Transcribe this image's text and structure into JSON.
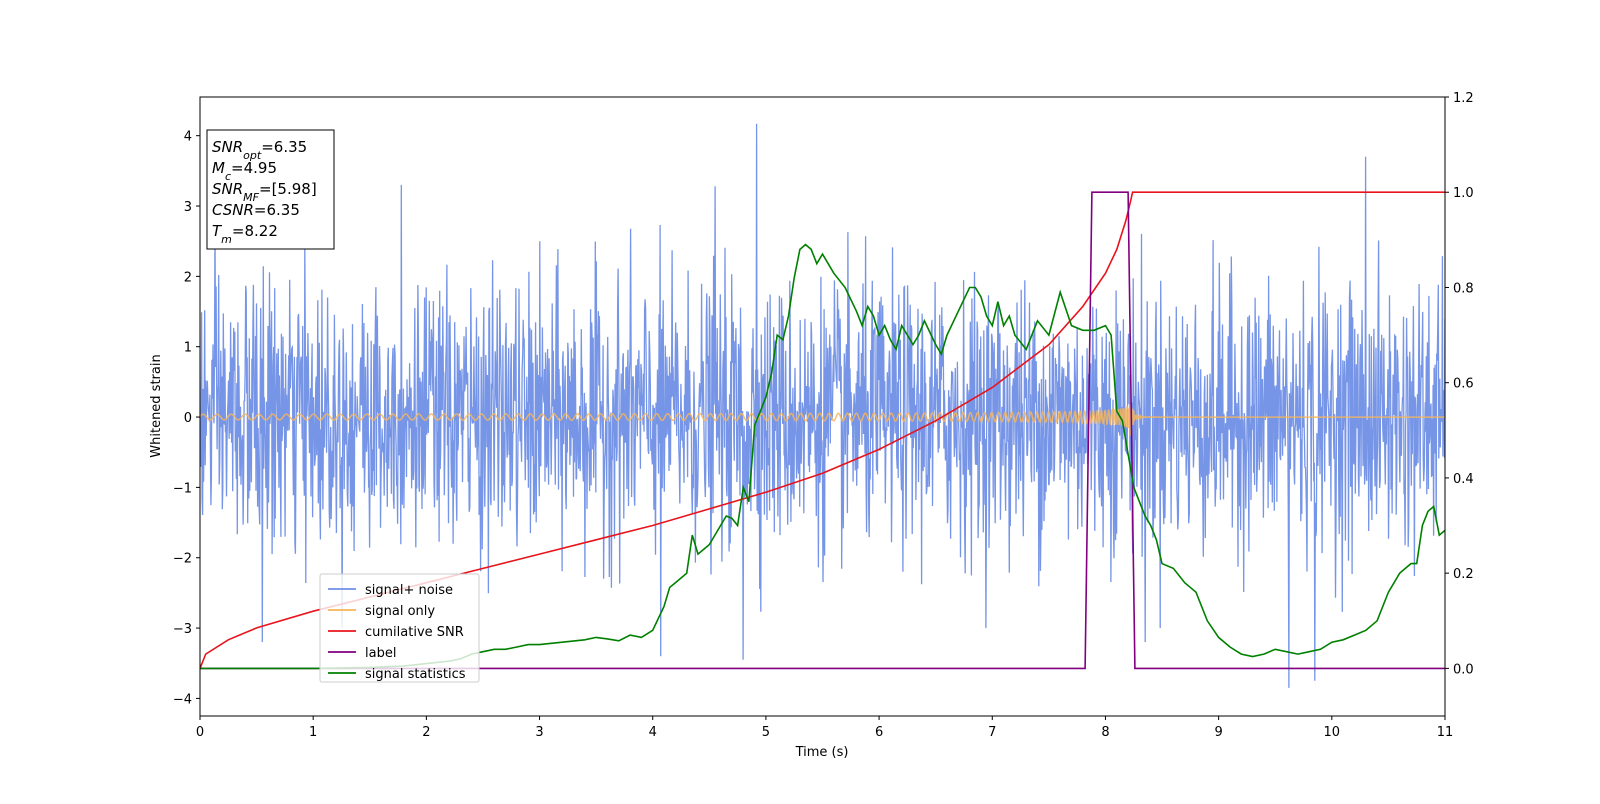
{
  "chart_data": {
    "type": "line",
    "xlabel": "Time (s)",
    "ylabel": "Whitened strain",
    "xlim": [
      0,
      11
    ],
    "ylim": [
      -4.25,
      4.55
    ],
    "y2lim": [
      -0.1,
      1.2
    ],
    "xticks": [
      "0",
      "1",
      "2",
      "3",
      "4",
      "5",
      "6",
      "7",
      "8",
      "9",
      "10",
      "11"
    ],
    "yticks": [
      "-4",
      "-3",
      "-2",
      "-1",
      "0",
      "1",
      "2",
      "3",
      "4"
    ],
    "y2ticks": [
      "0.0",
      "0.2",
      "0.4",
      "0.6",
      "0.8",
      "1.0",
      "1.2"
    ],
    "grid": false,
    "legend_position": "lower-left",
    "annotation": [
      {
        "name": "SNR",
        "sub": "opt",
        "value": "=6.35"
      },
      {
        "name": "M",
        "sub": "c",
        "value": "=4.95"
      },
      {
        "name": "SNR",
        "sub": "MF",
        "value": "=[5.98]"
      },
      {
        "name": "CSNR",
        "sub": "",
        "value": "=6.35"
      },
      {
        "name": "T",
        "sub": "m",
        "value": "=8.22"
      }
    ],
    "series": [
      {
        "name": "signal+ noise",
        "axis": "left",
        "color": "#6f8fe6",
        "kind": "noise",
        "sigma": 0.92,
        "spikes": [
          [
            4.92,
            4.17
          ],
          [
            10.3,
            3.7
          ],
          [
            1.78,
            3.3
          ],
          [
            4.55,
            3.28
          ],
          [
            9.62,
            -3.85
          ],
          [
            9.85,
            -3.75
          ],
          [
            4.8,
            -3.45
          ],
          [
            0.55,
            -3.2
          ],
          [
            4.07,
            -3.4
          ],
          [
            8.35,
            -3.2
          ]
        ]
      },
      {
        "name": "signal only",
        "axis": "left",
        "color": "#f7b55a",
        "kind": "chirp",
        "merger_time": 8.22,
        "start_amplitude": 0.04,
        "peak_amplitude": 0.32
      },
      {
        "name": "cumilative SNR",
        "axis": "right",
        "color": "#e8141c",
        "x": [
          0,
          0.05,
          0.25,
          0.5,
          1.0,
          1.5,
          2.0,
          2.5,
          3.0,
          3.5,
          4.0,
          4.5,
          5.0,
          5.5,
          6.0,
          6.5,
          7.0,
          7.5,
          7.8,
          8.0,
          8.1,
          8.18,
          8.22,
          8.24,
          11
        ],
        "y": [
          0.0,
          0.03,
          0.06,
          0.085,
          0.12,
          0.15,
          0.18,
          0.21,
          0.24,
          0.27,
          0.3,
          0.335,
          0.37,
          0.41,
          0.46,
          0.52,
          0.59,
          0.68,
          0.76,
          0.83,
          0.88,
          0.94,
          0.98,
          1.0,
          1.0
        ]
      },
      {
        "name": "label",
        "axis": "right",
        "color": "#800080",
        "x": [
          0,
          7.82,
          7.88,
          8.2,
          8.26,
          11
        ],
        "y": [
          0,
          0,
          1,
          1,
          0,
          0
        ]
      },
      {
        "name": "signal statistics",
        "axis": "right",
        "color": "#008000",
        "x": [
          0,
          1.0,
          1.5,
          1.8,
          2.0,
          2.2,
          2.3,
          2.4,
          2.5,
          2.6,
          2.7,
          2.8,
          2.9,
          3.0,
          3.2,
          3.4,
          3.5,
          3.6,
          3.7,
          3.8,
          3.9,
          4.0,
          4.1,
          4.15,
          4.2,
          4.3,
          4.35,
          4.4,
          4.5,
          4.6,
          4.65,
          4.7,
          4.75,
          4.8,
          4.85,
          4.9,
          4.95,
          5.0,
          5.05,
          5.1,
          5.15,
          5.2,
          5.25,
          5.3,
          5.35,
          5.4,
          5.45,
          5.5,
          5.6,
          5.7,
          5.8,
          5.85,
          5.9,
          5.95,
          6.0,
          6.05,
          6.1,
          6.15,
          6.2,
          6.25,
          6.3,
          6.35,
          6.4,
          6.5,
          6.55,
          6.6,
          6.7,
          6.8,
          6.85,
          6.9,
          6.95,
          7.0,
          7.05,
          7.1,
          7.15,
          7.2,
          7.3,
          7.4,
          7.5,
          7.6,
          7.7,
          7.8,
          7.9,
          8.0,
          8.05,
          8.1,
          8.15,
          8.2,
          8.25,
          8.3,
          8.35,
          8.4,
          8.45,
          8.5,
          8.6,
          8.7,
          8.8,
          8.9,
          9.0,
          9.1,
          9.2,
          9.3,
          9.4,
          9.5,
          9.6,
          9.7,
          9.8,
          9.9,
          10.0,
          10.1,
          10.2,
          10.3,
          10.4,
          10.5,
          10.6,
          10.7,
          10.75,
          10.8,
          10.85,
          10.9,
          10.95,
          11.0
        ],
        "y": [
          0.0,
          0.0,
          0.002,
          0.005,
          0.01,
          0.015,
          0.02,
          0.03,
          0.035,
          0.04,
          0.04,
          0.045,
          0.05,
          0.05,
          0.055,
          0.06,
          0.065,
          0.062,
          0.058,
          0.07,
          0.065,
          0.08,
          0.13,
          0.17,
          0.18,
          0.2,
          0.28,
          0.24,
          0.26,
          0.3,
          0.32,
          0.315,
          0.3,
          0.38,
          0.35,
          0.51,
          0.54,
          0.57,
          0.62,
          0.7,
          0.69,
          0.74,
          0.82,
          0.88,
          0.89,
          0.88,
          0.85,
          0.87,
          0.83,
          0.8,
          0.75,
          0.72,
          0.76,
          0.74,
          0.7,
          0.72,
          0.69,
          0.67,
          0.72,
          0.7,
          0.68,
          0.7,
          0.73,
          0.68,
          0.66,
          0.7,
          0.75,
          0.8,
          0.8,
          0.78,
          0.74,
          0.72,
          0.77,
          0.72,
          0.74,
          0.7,
          0.67,
          0.73,
          0.7,
          0.79,
          0.72,
          0.71,
          0.71,
          0.72,
          0.7,
          0.54,
          0.52,
          0.45,
          0.38,
          0.35,
          0.32,
          0.3,
          0.27,
          0.22,
          0.21,
          0.18,
          0.16,
          0.1,
          0.065,
          0.045,
          0.03,
          0.025,
          0.03,
          0.04,
          0.035,
          0.03,
          0.035,
          0.04,
          0.055,
          0.06,
          0.07,
          0.08,
          0.1,
          0.16,
          0.2,
          0.22,
          0.22,
          0.3,
          0.33,
          0.34,
          0.28,
          0.29
        ]
      }
    ]
  }
}
